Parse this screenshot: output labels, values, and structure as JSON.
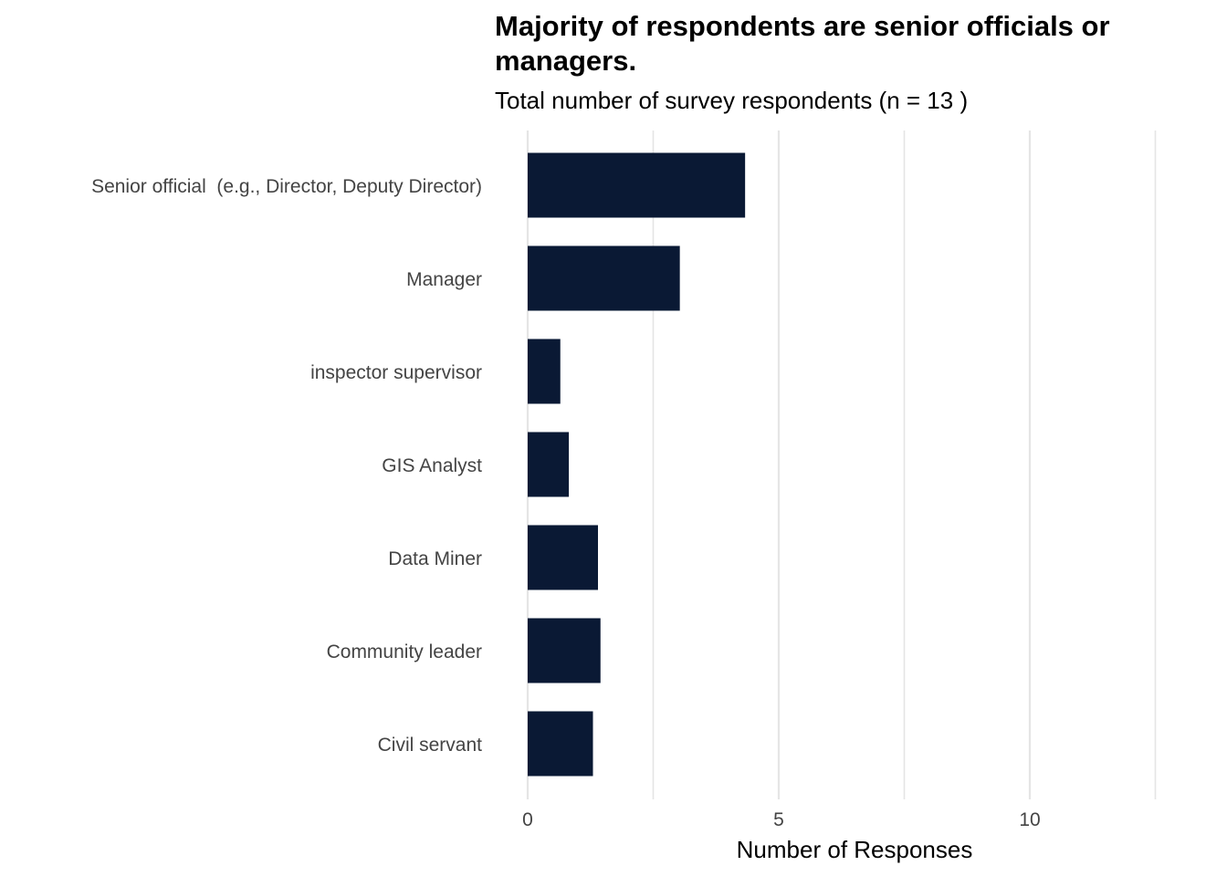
{
  "chart_data": {
    "type": "bar",
    "orientation": "horizontal",
    "title": "Majority of respondents are senior officials or managers.",
    "subtitle": "Total number of survey respondents (n = 13 )",
    "xlabel": "Number of Responses",
    "ylabel": "",
    "categories": [
      "Senior official  (e.g., Director, Deputy Director)",
      "Manager",
      "inspector supervisor",
      "GIS Analyst",
      "Data Miner",
      "Community leader",
      "Civil servant"
    ],
    "values": [
      4.33,
      3.03,
      0.65,
      0.82,
      1.4,
      1.45,
      1.3
    ],
    "xlim": [
      0,
      12.5
    ],
    "xticks": [
      0,
      5,
      10
    ],
    "xtick_labels": [
      "0",
      "5",
      "10"
    ],
    "grid": true,
    "legend": "none",
    "bar_color": "#0a1934",
    "grid_color": "#e5e5e5"
  }
}
